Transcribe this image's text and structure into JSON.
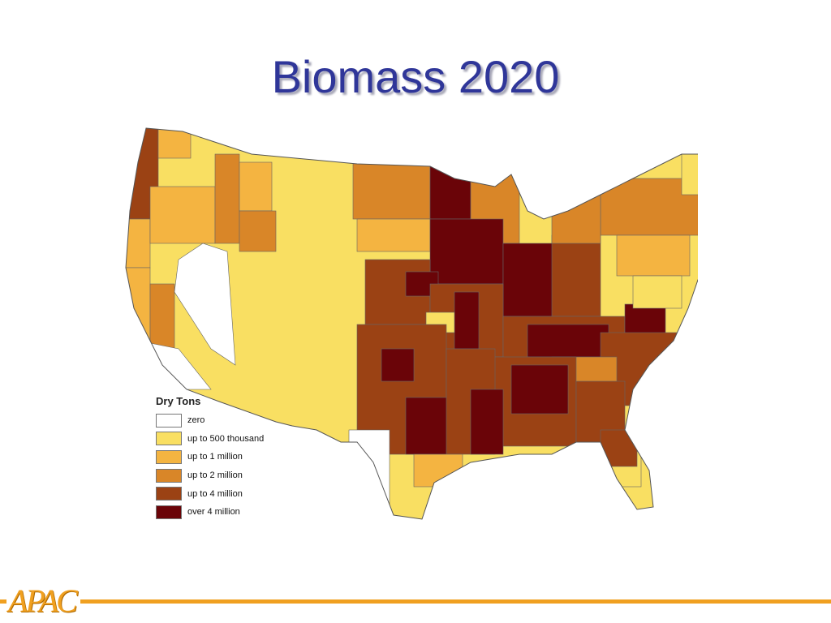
{
  "title": "Biomass 2020",
  "legend": {
    "title": "Dry Tons",
    "items": [
      {
        "label": "zero",
        "color": "#ffffff"
      },
      {
        "label": "up to 500 thousand",
        "color": "#f9df62"
      },
      {
        "label": "up to 1 million",
        "color": "#f4b441"
      },
      {
        "label": "up to 2 million",
        "color": "#d98628"
      },
      {
        "label": "up to 4 million",
        "color": "#9b4214"
      },
      {
        "label": "over 4 million",
        "color": "#6a0408"
      }
    ]
  },
  "logo": {
    "text": "APAC"
  },
  "colors": {
    "title": "#2f3699",
    "footer_line": "#f0a020",
    "borders": "#666666"
  }
}
